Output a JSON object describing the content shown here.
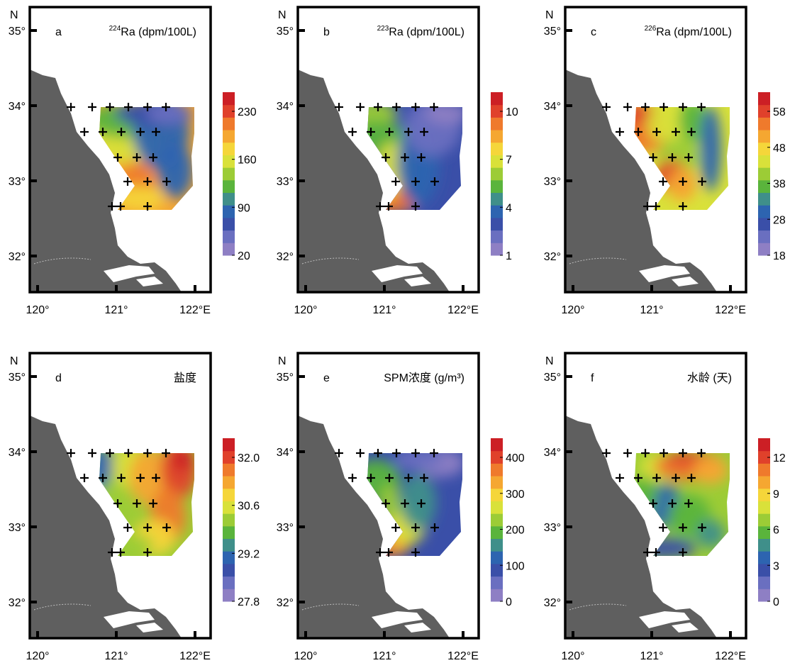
{
  "figure": {
    "panels": [
      {
        "id": "a",
        "title": "Ra (dpm/100L)",
        "title_sup": "224",
        "legend_ticks": [
          "230",
          "160",
          "90",
          "20"
        ],
        "field": "ra224"
      },
      {
        "id": "b",
        "title": "Ra (dpm/100L)",
        "title_sup": "223",
        "legend_ticks": [
          "10",
          "7",
          "4",
          "1"
        ],
        "field": "ra223"
      },
      {
        "id": "c",
        "title": "Ra (dpm/100L)",
        "title_sup": "226",
        "legend_ticks": [
          "58",
          "48",
          "38",
          "28",
          "18"
        ],
        "field": "ra226"
      },
      {
        "id": "d",
        "title": "盐度",
        "title_sup": "",
        "legend_ticks": [
          "32.0",
          "30.6",
          "29.2",
          "27.8"
        ],
        "field": "salinity"
      },
      {
        "id": "e",
        "title": "SPM浓度 (g/m³)",
        "title_sup": "",
        "legend_ticks": [
          "400",
          "300",
          "200",
          "100",
          "0"
        ],
        "field": "spm"
      },
      {
        "id": "f",
        "title": "水龄 (天)",
        "title_sup": "",
        "legend_ticks": [
          "12",
          "9",
          "6",
          "3",
          "0"
        ],
        "field": "age"
      }
    ],
    "lat_labels": [
      "N",
      "35°",
      "34°",
      "33°",
      "32°"
    ],
    "lon_labels": [
      "120°",
      "121°",
      "122°E"
    ]
  },
  "colors": {
    "land": "#5f5f5f",
    "palette": [
      "#8e7fc4",
      "#6a6fc0",
      "#3a4fa8",
      "#2d64b0",
      "#3f8f8a",
      "#5ab43c",
      "#9ccc36",
      "#d9e13a",
      "#f5d63a",
      "#f5a731",
      "#ef7a2c",
      "#e0412b",
      "#cc1f25"
    ]
  }
}
